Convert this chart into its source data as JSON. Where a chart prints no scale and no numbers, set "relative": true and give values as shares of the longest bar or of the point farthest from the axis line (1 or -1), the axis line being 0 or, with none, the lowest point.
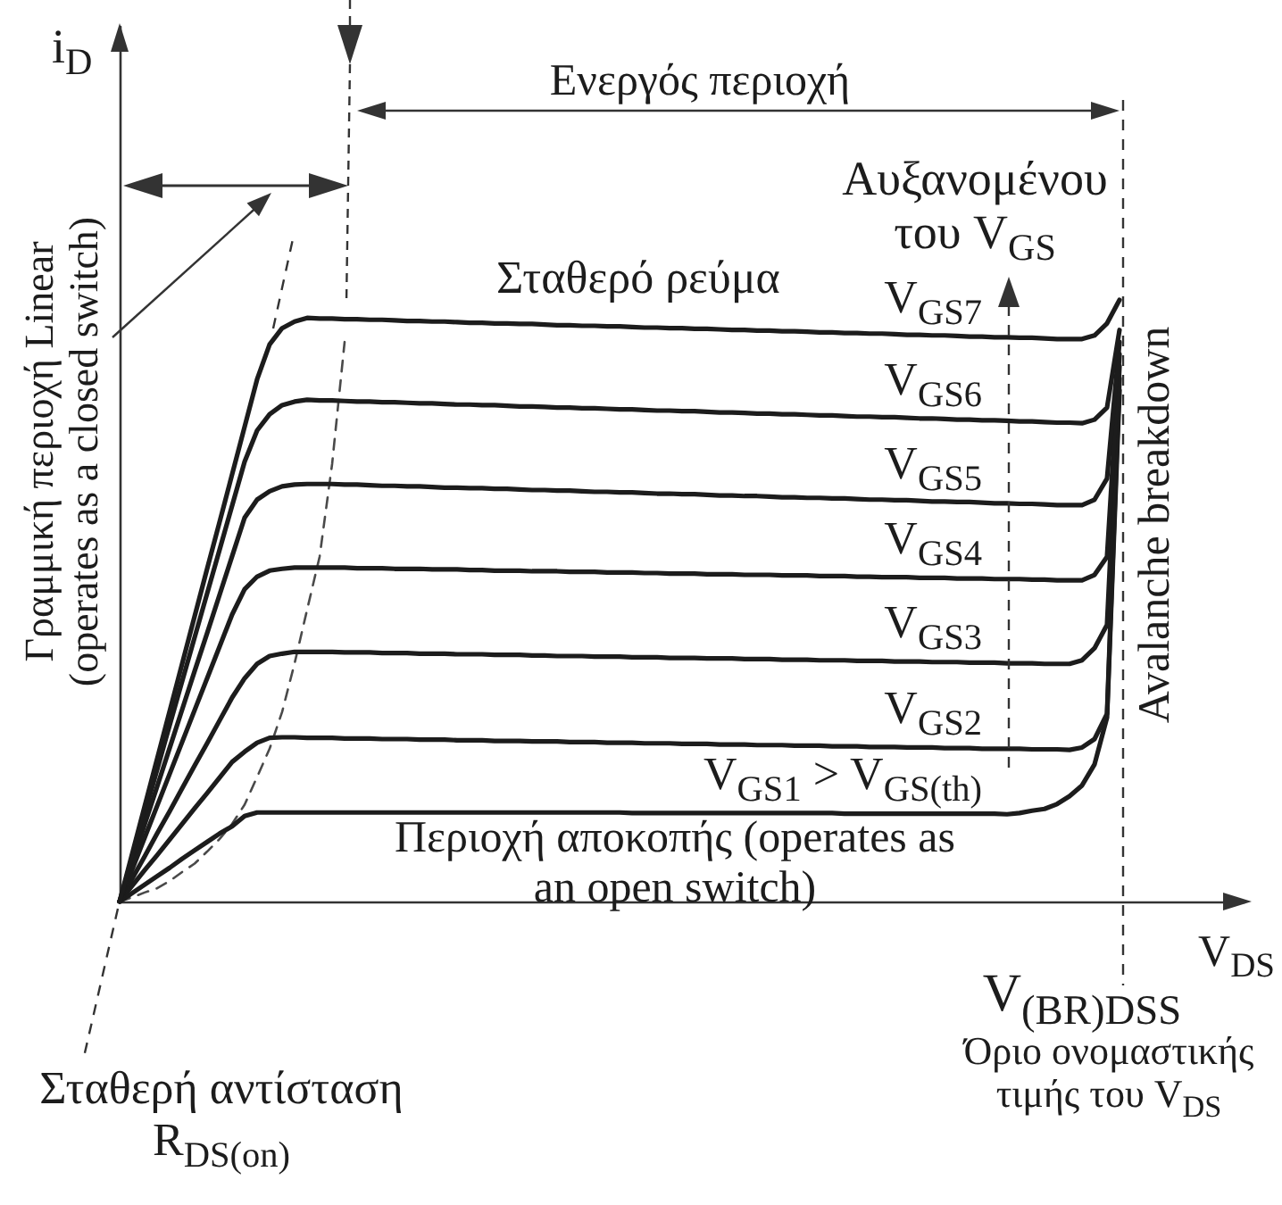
{
  "chart_data": {
    "type": "line",
    "relative": true,
    "marker": "none",
    "line_style": "solid",
    "xlabel": "V$_{DS}$",
    "ylabel": "i$_{D}$",
    "annotations": [
      "Ενεργός περιοχή",
      "Αυξανομένου του V$_{GS}$",
      "Σταθερό ρεύμα",
      "Avalanche breakdown",
      "Γραμμική περιοχή Linear (operates as a closed switch)",
      "Περιοχή αποκοπής (operates as an open switch)",
      "Σταθερή αντίσταση R$_{DS(on)}$",
      "V$_{(BR)DSS}$",
      "Όριο ονομαστικής τιμής του V$_{DS}$"
    ],
    "categories": [
      null,
      null,
      null,
      null,
      null,
      null,
      null,
      null,
      null,
      null,
      null,
      null,
      null,
      null,
      null,
      null,
      null,
      null,
      null,
      null,
      null,
      null,
      null,
      null,
      null,
      null,
      null,
      null,
      null,
      null,
      null,
      null,
      null,
      null,
      null,
      null,
      null,
      null,
      null,
      null,
      null,
      null,
      null,
      null,
      null,
      null,
      null,
      null,
      null,
      null,
      null,
      null,
      null,
      null,
      null,
      null,
      null,
      null,
      null,
      null,
      null,
      null,
      null,
      null,
      null,
      null,
      null,
      null,
      null,
      null,
      null,
      null,
      null,
      null,
      null,
      null,
      null,
      null,
      null,
      null,
      null,
      null,
      null,
      null,
      null,
      null,
      null,
      null,
      null,
      null,
      null
    ],
    "series": [
      {
        "name": "V$_{GS1}$ > V$_{GS(th)}$",
        "color": "#1c1c1c",
        "values": [
          0,
          0.014,
          0.028,
          0.042,
          0.056,
          0.071,
          0.085,
          0.099,
          0.113,
          0.125,
          0.142,
          0.148,
          0.148,
          0.148,
          0.148,
          0.148,
          0.148,
          0.148,
          0.148,
          0.148,
          0.148,
          0.148,
          0.148,
          0.148,
          0.148,
          0.148,
          0.148,
          0.148,
          0.148,
          0.148,
          0.148,
          0.148,
          0.148,
          0.148,
          0.148,
          0.148,
          0.148,
          0.148,
          0.148,
          0.148,
          0.148,
          0.147,
          0.147,
          0.147,
          0.147,
          0.147,
          0.147,
          0.147,
          0.147,
          0.147,
          0.147,
          0.147,
          0.147,
          0.147,
          0.147,
          0.147,
          0.147,
          0.147,
          0.146,
          0.146,
          0.146,
          0.146,
          0.146,
          0.146,
          0.146,
          0.146,
          0.146,
          0.146,
          0.146,
          0.146,
          0.146,
          0.145,
          0.147,
          0.151,
          0.154,
          0.162,
          0.175,
          0.193,
          0.228,
          0.306,
          0.85,
          null,
          null,
          null,
          null,
          null,
          null,
          null,
          null,
          null,
          null
        ]
      },
      {
        "name": "V$_{GS2}$",
        "color": "#1c1c1c",
        "values": [
          0,
          0.026,
          0.052,
          0.077,
          0.103,
          0.129,
          0.155,
          0.18,
          0.206,
          0.232,
          0.249,
          0.264,
          0.272,
          0.273,
          0.273,
          0.272,
          0.272,
          0.272,
          0.271,
          0.271,
          0.271,
          0.27,
          0.27,
          0.27,
          0.269,
          0.269,
          0.269,
          0.268,
          0.268,
          0.268,
          0.267,
          0.267,
          0.267,
          0.266,
          0.266,
          0.266,
          0.265,
          0.265,
          0.265,
          0.264,
          0.264,
          0.264,
          0.263,
          0.263,
          0.263,
          0.262,
          0.262,
          0.262,
          0.261,
          0.261,
          0.261,
          0.26,
          0.26,
          0.26,
          0.259,
          0.259,
          0.259,
          0.258,
          0.258,
          0.258,
          0.257,
          0.257,
          0.257,
          0.256,
          0.256,
          0.256,
          0.255,
          0.255,
          0.255,
          0.254,
          0.254,
          0.254,
          0.254,
          0.253,
          0.253,
          0.253,
          0.252,
          0.256,
          0.27,
          0.312,
          0.87,
          null,
          null,
          null,
          null,
          null,
          null,
          null,
          null,
          null,
          null
        ]
      },
      {
        "name": "V$_{GS3}$",
        "color": "#1c1c1c",
        "values": [
          0,
          0.038,
          0.075,
          0.113,
          0.15,
          0.188,
          0.226,
          0.263,
          0.301,
          0.339,
          0.371,
          0.395,
          0.408,
          0.412,
          0.415,
          0.415,
          0.415,
          0.415,
          0.414,
          0.414,
          0.414,
          0.413,
          0.413,
          0.413,
          0.412,
          0.412,
          0.412,
          0.411,
          0.411,
          0.411,
          0.41,
          0.41,
          0.41,
          0.409,
          0.409,
          0.408,
          0.408,
          0.408,
          0.407,
          0.407,
          0.407,
          0.406,
          0.406,
          0.406,
          0.405,
          0.405,
          0.405,
          0.404,
          0.404,
          0.404,
          0.403,
          0.403,
          0.403,
          0.402,
          0.402,
          0.402,
          0.401,
          0.401,
          0.401,
          0.4,
          0.4,
          0.4,
          0.399,
          0.399,
          0.399,
          0.398,
          0.398,
          0.398,
          0.397,
          0.397,
          0.397,
          0.396,
          0.396,
          0.396,
          0.395,
          0.395,
          0.395,
          0.401,
          0.421,
          0.46,
          0.89,
          null,
          null,
          null,
          null,
          null,
          null,
          null,
          null,
          null,
          null
        ]
      },
      {
        "name": "V$_{GS4}$",
        "color": "#1c1c1c",
        "values": [
          0,
          0.053,
          0.106,
          0.159,
          0.212,
          0.265,
          0.318,
          0.371,
          0.424,
          0.477,
          0.519,
          0.54,
          0.55,
          0.553,
          0.555,
          0.555,
          0.555,
          0.555,
          0.555,
          0.554,
          0.554,
          0.554,
          0.553,
          0.553,
          0.553,
          0.552,
          0.552,
          0.552,
          0.551,
          0.551,
          0.55,
          0.55,
          0.55,
          0.549,
          0.549,
          0.549,
          0.548,
          0.548,
          0.548,
          0.547,
          0.547,
          0.547,
          0.546,
          0.546,
          0.545,
          0.545,
          0.545,
          0.544,
          0.544,
          0.544,
          0.543,
          0.543,
          0.543,
          0.542,
          0.542,
          0.542,
          0.541,
          0.541,
          0.541,
          0.54,
          0.54,
          0.539,
          0.539,
          0.539,
          0.538,
          0.538,
          0.538,
          0.537,
          0.537,
          0.537,
          0.536,
          0.536,
          0.536,
          0.535,
          0.535,
          0.534,
          0.534,
          0.534,
          0.543,
          0.573,
          0.91,
          null,
          null,
          null,
          null,
          null,
          null,
          null,
          null,
          null,
          null
        ]
      },
      {
        "name": "V$_{GS5}$",
        "color": "#1c1c1c",
        "values": [
          0,
          0.064,
          0.128,
          0.191,
          0.255,
          0.319,
          0.383,
          0.446,
          0.51,
          0.574,
          0.638,
          0.668,
          0.682,
          0.69,
          0.693,
          0.694,
          0.694,
          0.694,
          0.693,
          0.693,
          0.692,
          0.691,
          0.691,
          0.69,
          0.69,
          0.689,
          0.688,
          0.688,
          0.687,
          0.687,
          0.686,
          0.686,
          0.685,
          0.684,
          0.684,
          0.683,
          0.683,
          0.682,
          0.681,
          0.681,
          0.68,
          0.68,
          0.679,
          0.678,
          0.678,
          0.677,
          0.677,
          0.676,
          0.675,
          0.675,
          0.674,
          0.674,
          0.673,
          0.672,
          0.672,
          0.671,
          0.671,
          0.67,
          0.67,
          0.669,
          0.668,
          0.668,
          0.667,
          0.667,
          0.666,
          0.665,
          0.665,
          0.664,
          0.664,
          0.663,
          0.662,
          0.662,
          0.661,
          0.661,
          0.66,
          0.659,
          0.659,
          0.659,
          0.668,
          0.703,
          0.93,
          null,
          null,
          null,
          null,
          null,
          null,
          null,
          null,
          null,
          null
        ]
      },
      {
        "name": "V$_{GS6}$",
        "color": "#1c1c1c",
        "values": [
          0,
          0.073,
          0.146,
          0.219,
          0.293,
          0.366,
          0.439,
          0.512,
          0.585,
          0.658,
          0.731,
          0.783,
          0.81,
          0.825,
          0.831,
          0.834,
          0.833,
          0.833,
          0.832,
          0.831,
          0.831,
          0.83,
          0.83,
          0.829,
          0.828,
          0.828,
          0.827,
          0.826,
          0.826,
          0.825,
          0.825,
          0.824,
          0.823,
          0.823,
          0.822,
          0.821,
          0.821,
          0.82,
          0.82,
          0.819,
          0.818,
          0.818,
          0.817,
          0.816,
          0.816,
          0.815,
          0.815,
          0.814,
          0.813,
          0.813,
          0.812,
          0.811,
          0.811,
          0.81,
          0.81,
          0.809,
          0.808,
          0.808,
          0.807,
          0.806,
          0.806,
          0.805,
          0.805,
          0.804,
          0.803,
          0.803,
          0.802,
          0.801,
          0.801,
          0.8,
          0.8,
          0.799,
          0.798,
          0.798,
          0.797,
          0.796,
          0.796,
          0.795,
          0.801,
          0.821,
          0.95,
          null,
          null,
          null,
          null,
          null,
          null,
          null,
          null,
          null,
          null
        ]
      },
      {
        "name": "V$_{GS7}$",
        "color": "#1c1c1c",
        "values": [
          0,
          0.079,
          0.158,
          0.237,
          0.316,
          0.395,
          0.474,
          0.553,
          0.631,
          0.71,
          0.789,
          0.868,
          0.926,
          0.953,
          0.964,
          0.97,
          0.969,
          0.969,
          0.968,
          0.968,
          0.967,
          0.967,
          0.966,
          0.965,
          0.965,
          0.964,
          0.964,
          0.963,
          0.962,
          0.962,
          0.961,
          0.961,
          0.96,
          0.96,
          0.959,
          0.958,
          0.958,
          0.957,
          0.957,
          0.956,
          0.956,
          0.955,
          0.954,
          0.954,
          0.953,
          0.953,
          0.952,
          0.952,
          0.951,
          0.95,
          0.95,
          0.949,
          0.949,
          0.948,
          0.948,
          0.947,
          0.946,
          0.946,
          0.945,
          0.945,
          0.944,
          0.944,
          0.943,
          0.942,
          0.942,
          0.941,
          0.941,
          0.94,
          0.939,
          0.939,
          0.938,
          0.938,
          0.937,
          0.937,
          0.936,
          0.935,
          0.935,
          0.935,
          0.941,
          0.961,
          1,
          null,
          null,
          null,
          null,
          null,
          null,
          null,
          null,
          null,
          null
        ]
      },
      {
        "color": "#4a4a4a",
        "line_style": "dashed",
        "values": [
          0,
          0.007,
          0.015,
          0.022,
          0.034,
          0.049,
          0.063,
          0.083,
          0.104,
          0.129,
          0.161,
          0.207,
          0.254,
          0.315,
          0.396,
          0.485,
          0.573,
          0.727,
          0.93,
          null,
          null,
          null,
          null,
          null,
          null,
          null,
          null,
          null,
          null,
          null,
          null,
          null,
          null,
          null,
          null,
          null,
          null,
          null,
          null,
          null,
          null,
          null,
          null,
          null,
          null,
          null,
          null,
          null,
          null,
          null,
          null,
          null,
          null,
          null,
          null,
          null,
          null,
          null,
          null,
          null,
          null,
          null,
          null,
          null,
          null,
          null,
          null,
          null,
          null,
          null,
          null,
          null,
          null,
          null,
          null,
          null,
          null,
          null,
          null,
          null,
          null,
          null,
          null,
          null,
          null,
          null,
          null,
          null,
          null,
          null,
          null
        ]
      }
    ]
  }
}
